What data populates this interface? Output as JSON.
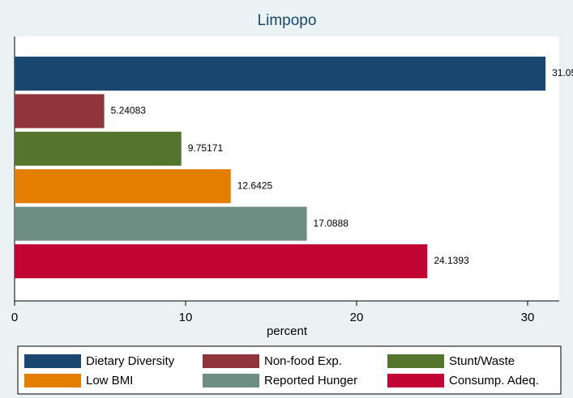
{
  "chart_data": {
    "type": "bar",
    "orientation": "horizontal",
    "title": "Limpopo",
    "xlabel": "percent",
    "series": [
      {
        "name": "Dietary Diversity",
        "color": "#1a476f",
        "values": [
          31.05
        ]
      },
      {
        "name": "Non-food Exp.",
        "color": "#90353b",
        "values": [
          5.24083
        ]
      },
      {
        "name": "Stunt/Waste",
        "color": "#55752f",
        "values": [
          9.75171
        ]
      },
      {
        "name": "Low BMI",
        "color": "#e37e00",
        "values": [
          12.6425
        ]
      },
      {
        "name": "Reported Hunger",
        "color": "#6e8e84",
        "values": [
          17.0888
        ]
      },
      {
        "name": "Consump. Adeq.",
        "color": "#c10534",
        "values": [
          24.1393
        ]
      }
    ],
    "xlim": [
      0,
      31.85
    ],
    "xticks": [
      0,
      10,
      20,
      30
    ],
    "grid": false,
    "legend": "bottom"
  }
}
